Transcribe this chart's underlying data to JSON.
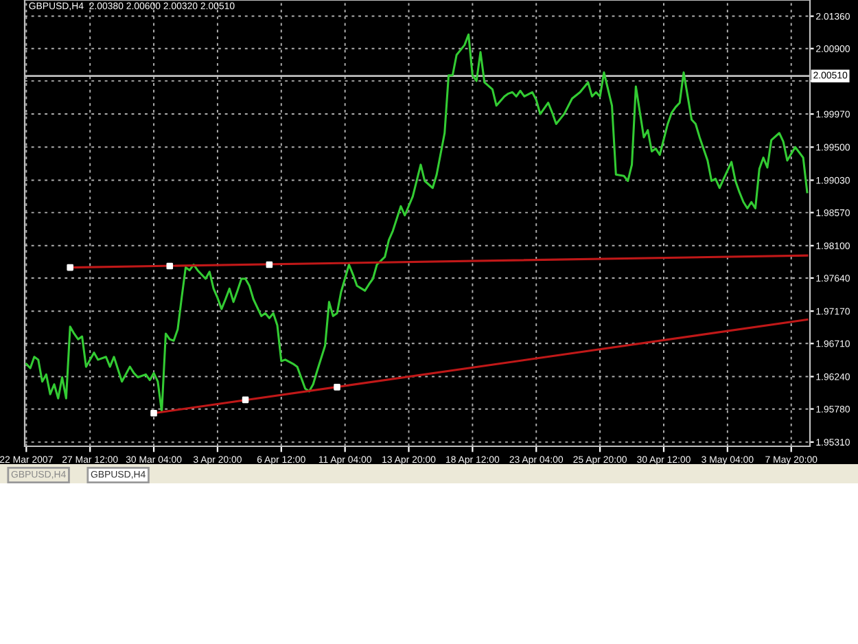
{
  "chart_data": {
    "type": "line",
    "title": "GBPUSD,H4  2.00380 2.00600 2.00320 2.00510",
    "ylim": [
      1.9525,
      2.0159
    ],
    "categories": [
      "22 Mar 2007",
      null,
      null,
      null,
      null,
      null,
      null,
      null,
      null,
      null,
      null,
      null,
      null,
      null,
      null,
      null,
      "27 Mar 12:00",
      null,
      null,
      null,
      null,
      null,
      null,
      null,
      null,
      null,
      null,
      null,
      null,
      null,
      null,
      null,
      "30 Mar 04:00",
      null,
      null,
      null,
      null,
      null,
      null,
      null,
      null,
      null,
      null,
      null,
      null,
      null,
      null,
      null,
      "3 Apr 20:00",
      null,
      null,
      null,
      null,
      null,
      null,
      null,
      null,
      null,
      null,
      null,
      null,
      null,
      null,
      null,
      "6 Apr 12:00",
      null,
      null,
      null,
      null,
      null,
      null,
      null,
      null,
      null,
      null,
      null,
      null,
      null,
      null,
      null,
      "11 Apr 04:00",
      null,
      null,
      null,
      null,
      null,
      null,
      null,
      null,
      null,
      null,
      null,
      null,
      null,
      null,
      null,
      "13 Apr 20:00",
      null,
      null,
      null,
      null,
      null,
      null,
      null,
      null,
      null,
      null,
      null,
      null,
      null,
      null,
      null,
      "18 Apr 12:00",
      null,
      null,
      null,
      null,
      null,
      null,
      null,
      null,
      null,
      null,
      null,
      null,
      null,
      null,
      null,
      "23 Apr 04:00",
      null,
      null,
      null,
      null,
      null,
      null,
      null,
      null,
      null,
      null,
      null,
      null,
      null,
      null,
      null,
      "25 Apr 20:00",
      null,
      null,
      null,
      null,
      null,
      null,
      null,
      null,
      null,
      null,
      null,
      null,
      null,
      null,
      null,
      "30 Apr 12:00",
      null,
      null,
      null,
      null,
      null,
      null,
      null,
      null,
      null,
      null,
      null,
      null,
      null,
      null,
      null,
      "3 May 04:00",
      null,
      null,
      null,
      null,
      null,
      null,
      null,
      null,
      null,
      null,
      null,
      null,
      null,
      null,
      null,
      "7 May 20:00",
      null,
      null,
      null,
      null
    ],
    "yticks": [
      {
        "value": 1.9531,
        "label": "1.95310"
      },
      {
        "value": 1.9578,
        "label": "1.95780"
      },
      {
        "value": 1.9624,
        "label": "1.96240"
      },
      {
        "value": 1.9671,
        "label": "1.96710"
      },
      {
        "value": 1.9717,
        "label": "1.97170"
      },
      {
        "value": 1.9764,
        "label": "1.97640"
      },
      {
        "value": 1.981,
        "label": "1.98100"
      },
      {
        "value": 1.9857,
        "label": "1.98570"
      },
      {
        "value": 1.9903,
        "label": "1.99030"
      },
      {
        "value": 1.995,
        "label": "1.99500"
      },
      {
        "value": 1.9997,
        "label": "1.99970"
      },
      {
        "value": 2.0044,
        "label": null
      },
      {
        "value": 2.009,
        "label": "2.00900"
      },
      {
        "value": 2.0136,
        "label": "2.01360"
      }
    ],
    "grid": true,
    "ref_lines": [
      {
        "axis": "y",
        "value": 2.0051,
        "label": "2.00510",
        "color": "#c0c0c0"
      }
    ],
    "annotations": [
      "GBPUSD,H4",
      "GBPUSD,H4"
    ],
    "series": [
      {
        "color": "#33cc33",
        "marker": "none",
        "values": [
          1.9642,
          1.9636,
          1.9652,
          1.9648,
          1.9617,
          1.9627,
          1.9599,
          1.9613,
          1.9593,
          1.9623,
          1.9593,
          1.9695,
          1.9685,
          1.9677,
          1.9681,
          1.9638,
          null,
          1.9658,
          1.9648,
          null,
          1.9652,
          1.9638,
          1.9652,
          null,
          1.9617,
          null,
          1.9638,
          1.9629,
          1.9623,
          null,
          1.9627,
          1.9619,
          1.9629,
          1.9617,
          1.9574,
          1.9685,
          1.9677,
          1.9675,
          1.9691,
          1.9736,
          1.9779,
          1.9775,
          1.9783,
          1.9775,
          null,
          1.9763,
          1.9773,
          1.9749,
          1.9736,
          1.972,
          1.9734,
          1.9749,
          1.973,
          1.9746,
          1.9763,
          1.9763,
          1.9753,
          1.9734,
          null,
          1.971,
          1.9714,
          1.9707,
          1.9714,
          1.9697,
          1.9646,
          1.9648,
          null,
          1.9642,
          1.9638,
          null,
          1.9607,
          1.9603,
          1.9613,
          1.9632,
          null,
          1.9668,
          1.973,
          1.971,
          1.9714,
          1.9744,
          null,
          1.9783,
          1.9769,
          1.9753,
          null,
          1.9746,
          1.9755,
          1.9763,
          1.9783,
          null,
          1.9794,
          1.9818,
          1.9831,
          null,
          1.9866,
          1.9853,
          null,
          1.988,
          null,
          1.9925,
          1.9902,
          null,
          1.9892,
          1.9911,
          null,
          1.997,
          2.0052,
          2.0052,
          2.0081,
          null,
          2.0095,
          2.011,
          2.0052,
          2.0044,
          2.0085,
          2.0042,
          null,
          2.0032,
          2.0009,
          null,
          2.0022,
          2.0026,
          2.0028,
          2.0022,
          2.003,
          2.0022,
          null,
          2.0028,
          2.0017,
          1.9997,
          null,
          2.0013,
          1.9999,
          1.9983,
          null,
          1.9997,
          null,
          2.0019,
          null,
          2.0028,
          null,
          2.0042,
          2.0022,
          2.0028,
          2.0022,
          2.0056,
          null,
          2.0009,
          1.9911,
          null,
          1.9909,
          1.9902,
          1.9925,
          2.0036,
          null,
          1.9964,
          1.9974,
          1.9944,
          1.9948,
          1.9939,
          null,
          1.9983,
          1.9999,
          2.0007,
          2.0013,
          2.0056,
          null,
          1.9989,
          1.9983,
          1.9964,
          null,
          1.9931,
          1.9902,
          1.9905,
          1.9892,
          null,
          null,
          1.9929,
          1.9902,
          1.9886,
          1.9872,
          1.9863,
          1.9872,
          1.9863,
          1.9919,
          1.9935,
          1.9921,
          1.996,
          null,
          1.997,
          1.9958,
          1.9931,
          null,
          1.995,
          null,
          1.9935,
          1.9886
        ]
      },
      {
        "color": "#c01818",
        "marker": "none",
        "values": [
          null,
          null,
          null,
          null,
          null,
          null,
          null,
          null,
          null,
          null,
          null,
          1.9779,
          null,
          null,
          null,
          null,
          null,
          null,
          null,
          null,
          null,
          null,
          null,
          null,
          null,
          null,
          null,
          null,
          null,
          null,
          null,
          null,
          null,
          null,
          null,
          null,
          null,
          null,
          null,
          null,
          null,
          null,
          null,
          null,
          null,
          null,
          null,
          null,
          null,
          null,
          null,
          null,
          null,
          null,
          null,
          null,
          null,
          null,
          null,
          null,
          null,
          null,
          null,
          null,
          null,
          null,
          null,
          null,
          null,
          null,
          null,
          null,
          null,
          null,
          null,
          null,
          null,
          null,
          null,
          null,
          null,
          null,
          null,
          null,
          null,
          null,
          null,
          null,
          null,
          null,
          null,
          null,
          null,
          null,
          null,
          null,
          null,
          null,
          null,
          null,
          null,
          null,
          null,
          null,
          null,
          null,
          null,
          null,
          null,
          null,
          null,
          null,
          null,
          null,
          null,
          null,
          null,
          null,
          null,
          null,
          null,
          null,
          null,
          null,
          null,
          null,
          null,
          null,
          null,
          null,
          null,
          null,
          null,
          null,
          null,
          null,
          null,
          null,
          null,
          null,
          null,
          null,
          null,
          null,
          null,
          null,
          null,
          null,
          null,
          null,
          null,
          null,
          null,
          null,
          null,
          null,
          null,
          null,
          null,
          null,
          null,
          null,
          null,
          null,
          null,
          null,
          null,
          null,
          null,
          null,
          null,
          null,
          null,
          null,
          null,
          null,
          null,
          null,
          null,
          null,
          null,
          null,
          null,
          null,
          null,
          null,
          null,
          null,
          null,
          null,
          null,
          null,
          null,
          null,
          null,
          null,
          1.9796
        ]
      },
      {
        "color": "#c01818",
        "marker": "none",
        "values": [
          null,
          null,
          null,
          null,
          null,
          null,
          null,
          null,
          null,
          null,
          null,
          null,
          null,
          null,
          null,
          null,
          null,
          null,
          null,
          null,
          null,
          null,
          null,
          null,
          null,
          null,
          null,
          null,
          null,
          null,
          null,
          null,
          1.9572,
          null,
          null,
          null,
          null,
          null,
          null,
          null,
          null,
          null,
          null,
          null,
          null,
          null,
          null,
          null,
          null,
          null,
          null,
          null,
          null,
          null,
          null,
          null,
          null,
          null,
          null,
          null,
          null,
          null,
          null,
          null,
          null,
          null,
          null,
          null,
          null,
          null,
          null,
          null,
          null,
          null,
          null,
          null,
          null,
          null,
          null,
          null,
          null,
          null,
          null,
          null,
          null,
          null,
          null,
          null,
          null,
          null,
          null,
          null,
          null,
          null,
          null,
          null,
          null,
          null,
          null,
          null,
          null,
          null,
          null,
          null,
          null,
          null,
          null,
          null,
          null,
          null,
          null,
          null,
          null,
          null,
          null,
          null,
          null,
          null,
          null,
          null,
          null,
          null,
          null,
          null,
          null,
          null,
          null,
          null,
          null,
          null,
          null,
          null,
          null,
          null,
          null,
          null,
          null,
          null,
          null,
          null,
          null,
          null,
          null,
          null,
          null,
          null,
          null,
          null,
          null,
          null,
          null,
          null,
          null,
          null,
          null,
          null,
          null,
          null,
          null,
          null,
          null,
          null,
          null,
          null,
          null,
          null,
          null,
          null,
          null,
          null,
          null,
          null,
          null,
          null,
          null,
          null,
          null,
          null,
          null,
          null,
          null,
          null,
          null,
          null,
          null,
          null,
          null,
          null,
          null,
          null,
          null,
          null,
          null,
          null,
          null,
          null,
          1.9705
        ]
      },
      {
        "type": "scatter",
        "color": "#ffffff",
        "marker": "square",
        "values": [
          null,
          null,
          null,
          null,
          null,
          null,
          null,
          null,
          null,
          null,
          null,
          1.9779,
          null,
          null,
          null,
          null,
          null,
          null,
          null,
          null,
          null,
          null,
          null,
          null,
          null,
          null,
          null,
          null,
          null,
          null,
          null,
          null,
          1.9572,
          null,
          null,
          null,
          1.9781,
          null,
          null,
          null,
          null,
          null,
          null,
          null,
          null,
          null,
          null,
          null,
          null,
          null,
          null,
          null,
          null,
          null,
          null,
          1.9591,
          null,
          null,
          null,
          null,
          null,
          1.9783,
          null,
          null,
          null,
          null,
          null,
          null,
          null,
          null,
          null,
          null,
          null,
          null,
          null,
          null,
          null,
          null,
          1.9609,
          null,
          null,
          null,
          null,
          null,
          null,
          null,
          null,
          null,
          null,
          null,
          null,
          null,
          null,
          null,
          null,
          null,
          null,
          null,
          null,
          null,
          null,
          null,
          null,
          null,
          null,
          null,
          null,
          null,
          null,
          null,
          null,
          null,
          null,
          null,
          null,
          null,
          null,
          null,
          null,
          null,
          null,
          null,
          null,
          null,
          null,
          null,
          null,
          null,
          null,
          null,
          null,
          null,
          null,
          null,
          null,
          null,
          null,
          null,
          null,
          null,
          null,
          null,
          null,
          null,
          null,
          null,
          null,
          null,
          null,
          null,
          null,
          null,
          null,
          null,
          null,
          null,
          null,
          null,
          null,
          null,
          null,
          null,
          null,
          null,
          null,
          null,
          null,
          null,
          null,
          null,
          null,
          null,
          null,
          null,
          null,
          null,
          null,
          null,
          null,
          null,
          null,
          null,
          null,
          null,
          null,
          null,
          null,
          null,
          null,
          null,
          null,
          null,
          null,
          null,
          null,
          null,
          null
        ]
      }
    ]
  }
}
